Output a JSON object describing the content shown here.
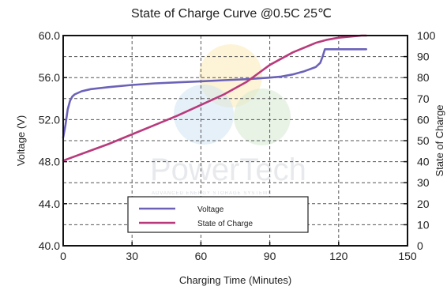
{
  "chart_data": {
    "type": "line",
    "title": "State of Charge Curve @0.5C 25℃",
    "xlabel": "Charging Time (Minutes)",
    "ylabel_left": "Voltage (V)",
    "ylabel_right": "State of Charge",
    "xlim": [
      0,
      150
    ],
    "ylim_left": [
      40.0,
      60.0
    ],
    "ylim_right": [
      0,
      100
    ],
    "x_ticks": [
      "0",
      "30",
      "60",
      "90",
      "120",
      "150"
    ],
    "y_left_ticks": [
      "40.0",
      "44.0",
      "48.0",
      "52.0",
      "56.0",
      "60.0"
    ],
    "y_right_ticks": [
      "0",
      "10",
      "20",
      "30",
      "40",
      "50",
      "60",
      "70",
      "80",
      "90",
      "100"
    ],
    "grid": true,
    "legend_position": "bottom-center",
    "colors": {
      "voltage": "#6b62b8",
      "soc": "#b83a7c"
    },
    "series": [
      {
        "name": "Voltage",
        "axis": "left",
        "x": [
          0,
          1,
          2,
          3,
          4,
          5,
          8,
          12,
          20,
          30,
          40,
          50,
          60,
          70,
          80,
          90,
          95,
          100,
          105,
          110,
          112,
          113,
          114,
          115,
          120,
          130,
          132
        ],
        "y": [
          50.3,
          51.5,
          53.0,
          53.8,
          54.2,
          54.4,
          54.7,
          54.9,
          55.1,
          55.3,
          55.45,
          55.55,
          55.65,
          55.75,
          55.85,
          56.0,
          56.1,
          56.3,
          56.6,
          57.0,
          57.4,
          58.0,
          58.7,
          58.7,
          58.7,
          58.7,
          58.7
        ]
      },
      {
        "name": "State of Charge",
        "axis": "right",
        "x": [
          0,
          10,
          20,
          30,
          40,
          50,
          60,
          70,
          80,
          90,
          100,
          110,
          115,
          120,
          125,
          130,
          132
        ],
        "y": [
          40.5,
          44.5,
          48.5,
          53,
          57.5,
          62,
          67,
          72,
          78,
          86,
          92,
          96.5,
          98,
          99,
          99.5,
          100,
          100
        ]
      }
    ]
  },
  "watermark": {
    "brand": "PowerTech",
    "tagline": "ADVANCED ENERGY STORAGE SYSTEMS"
  }
}
